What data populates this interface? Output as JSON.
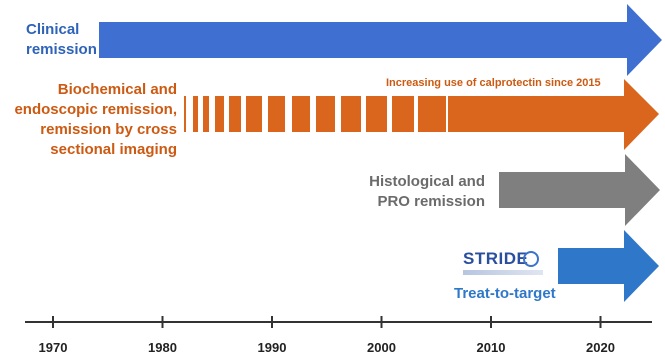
{
  "rows": {
    "clinical": {
      "label_line1": "Clinical",
      "label_line2": "remission",
      "start_year": 1974,
      "color": "#3f6fd0"
    },
    "biochemical": {
      "label_lines": [
        "Biochemical and",
        "endoscopic remission,",
        "remission by cross",
        "sectional imaging"
      ],
      "annotation": "Increasing use of calprotectin since 2015",
      "start_year": 1982,
      "solid_from_year": 2006,
      "color": "#d9661c"
    },
    "histological": {
      "label_line1": "Histological and",
      "label_line2": "PRO remission",
      "start_year": 2011,
      "color": "#7f7f7f"
    },
    "stride": {
      "logo_text": "STRIDE",
      "label": "Treat-to-target",
      "start_year": 2015,
      "color": "#2f78c9"
    }
  },
  "timeline": {
    "years": [
      1970,
      1980,
      1990,
      2000,
      2010,
      2020
    ],
    "axis_color": "#333333"
  }
}
